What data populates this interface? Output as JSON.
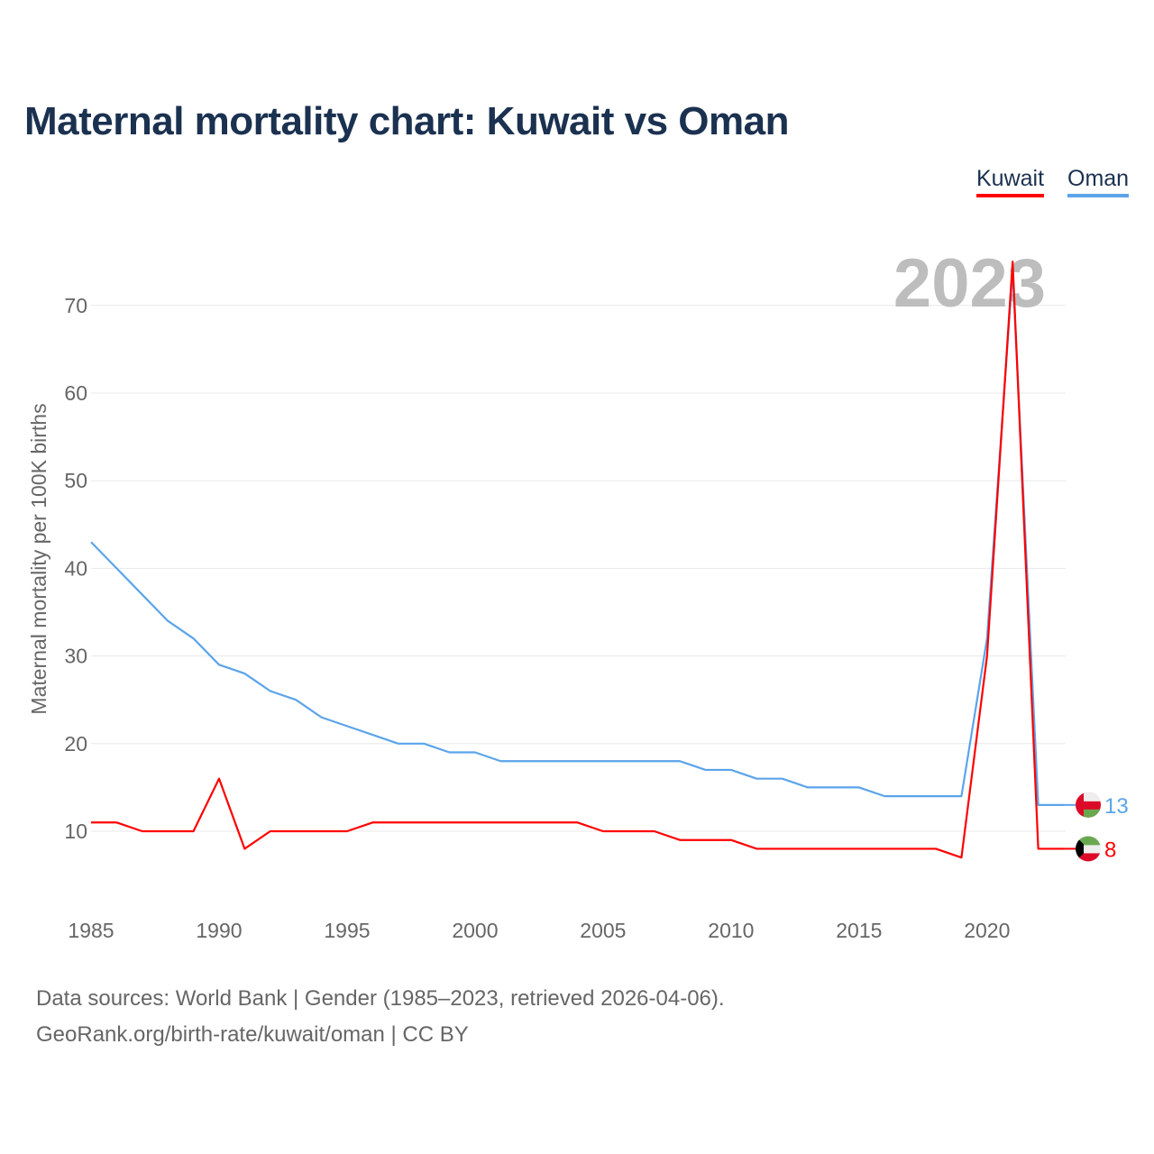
{
  "title": "Maternal mortality chart: Kuwait vs Oman",
  "legend": [
    {
      "name": "Kuwait",
      "color": "#ff0000"
    },
    {
      "name": "Oman",
      "color": "#5ba4ea"
    }
  ],
  "year_watermark": "2023",
  "footer": {
    "line1": "Data sources: World Bank | Gender (1985–2023, retrieved 2026-04-06).",
    "line2": "GeoRank.org/birth-rate/kuwait/oman | CC BY"
  },
  "end_labels": {
    "Kuwait": "8",
    "Oman": "13"
  },
  "chart_data": {
    "type": "line",
    "title": "Maternal mortality chart: Kuwait vs Oman",
    "xlabel": "",
    "ylabel": "Maternal mortality per 100K births",
    "x": [
      1985,
      1986,
      1987,
      1988,
      1989,
      1990,
      1991,
      1992,
      1993,
      1994,
      1995,
      1996,
      1997,
      1998,
      1999,
      2000,
      2001,
      2002,
      2003,
      2004,
      2005,
      2006,
      2007,
      2008,
      2009,
      2010,
      2011,
      2012,
      2013,
      2014,
      2015,
      2016,
      2017,
      2018,
      2019,
      2020,
      2021,
      2022,
      2023
    ],
    "xticks": [
      "1985",
      "1990",
      "1995",
      "2000",
      "2005",
      "2010",
      "2015",
      "2020"
    ],
    "yticks": [
      "10",
      "20",
      "30",
      "40",
      "50",
      "60",
      "70"
    ],
    "xlim": [
      1985,
      2023
    ],
    "ylim": [
      0,
      78
    ],
    "grid": true,
    "legend_position": "top-right",
    "series": [
      {
        "name": "Kuwait",
        "color": "#ff0000",
        "values": [
          11,
          11,
          10,
          10,
          10,
          16,
          8,
          10,
          10,
          10,
          10,
          11,
          11,
          11,
          11,
          11,
          11,
          11,
          11,
          11,
          10,
          10,
          10,
          9,
          9,
          9,
          8,
          8,
          8,
          8,
          8,
          8,
          8,
          8,
          7,
          30,
          75,
          8,
          8
        ]
      },
      {
        "name": "Oman",
        "color": "#5ba4ea",
        "values": [
          43,
          40,
          37,
          34,
          32,
          29,
          28,
          26,
          25,
          23,
          22,
          21,
          20,
          20,
          19,
          19,
          18,
          18,
          18,
          18,
          18,
          18,
          18,
          18,
          17,
          17,
          16,
          16,
          15,
          15,
          15,
          14,
          14,
          14,
          14,
          32,
          74,
          13,
          13
        ]
      }
    ]
  }
}
